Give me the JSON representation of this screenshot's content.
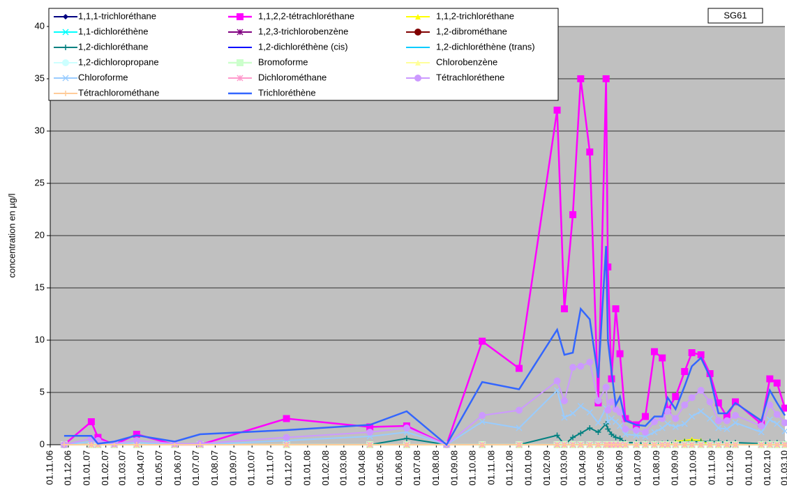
{
  "chart_data": {
    "type": "line",
    "annotation": "SG61",
    "y_label": "concentration en µg/l",
    "background": "#c0c0c0",
    "grid": true,
    "ylim": [
      0,
      40
    ],
    "yticks": [
      0,
      5,
      10,
      15,
      20,
      25,
      30,
      35,
      40
    ],
    "xlim": [
      "01.11.06",
      "01.03.10"
    ],
    "xticks": [
      "01.11.06",
      "01.12.06",
      "01.01.07",
      "01.02.07",
      "01.03.07",
      "01.04.07",
      "01.05.07",
      "01.06.07",
      "01.07.07",
      "01.08.07",
      "01.09.07",
      "01.10.07",
      "01.11.07",
      "01.12.07",
      "01.01.08",
      "01.02.08",
      "01.03.08",
      "01.04.08",
      "01.05.08",
      "01.06.08",
      "01.07.08",
      "01.08.08",
      "01.09.08",
      "01.10.08",
      "01.11.08",
      "01.12.08",
      "01.01.09",
      "01.02.09",
      "01.03.09",
      "01.04.09",
      "01.05.09",
      "01.06.09",
      "01.07.09",
      "01.08.09",
      "01.09.09",
      "01.10.09",
      "01.11.09",
      "01.12.09",
      "01.01.10",
      "01.02.10",
      "01.03.10"
    ],
    "x": [
      "24.11.06",
      "08.01.07",
      "19.01.07",
      "15.02.07",
      "24.03.07",
      "26.05.07",
      "07.07.07",
      "27.11.07",
      "13.04.08",
      "13.06.08",
      "18.08.08",
      "16.10.08",
      "16.12.08",
      "17.02.09",
      "01.03.09",
      "15.03.09",
      "28.03.09",
      "12.04.09",
      "26.04.09",
      "09.05.09",
      "12.05.09",
      "18.05.09",
      "25.05.09",
      "01.06.09",
      "10.06.09",
      "28.06.09",
      "13.07.09",
      "28.07.09",
      "10.08.09",
      "19.08.09",
      "01.09.09",
      "16.09.09",
      "28.09.09",
      "13.10.09",
      "28.10.09",
      "11.11.09",
      "25.11.09",
      "09.12.09",
      "21.01.10",
      "04.02.10",
      "16.02.10",
      "01.03.10"
    ],
    "series": [
      {
        "name": "1,1,1-trichloréthane",
        "color": "#000080",
        "marker": "diamond",
        "values": [
          0,
          0,
          0,
          0,
          0,
          0,
          0,
          0,
          0,
          0,
          0,
          0,
          0,
          0,
          0,
          0,
          0,
          0,
          0,
          0,
          0,
          0,
          0,
          0,
          0,
          0,
          0,
          0,
          0,
          0,
          0,
          0,
          0,
          0,
          0,
          0,
          0,
          0,
          0,
          0,
          0,
          0
        ]
      },
      {
        "name": "1,1,2,2-tétrachloréthane",
        "color": "#ff00ff",
        "marker": "square",
        "values": [
          0,
          2.2,
          0.7,
          0,
          1.0,
          0,
          0,
          2.5,
          1.7,
          1.8,
          0,
          9.9,
          7.3,
          32,
          13,
          22,
          35,
          28,
          4,
          35,
          17,
          6.3,
          13,
          8.7,
          2.5,
          1.9,
          2.7,
          8.9,
          8.3,
          3.3,
          4.6,
          7,
          8.8,
          8.6,
          6.8,
          4,
          2.7,
          4.1,
          2,
          6.3,
          5.9,
          3.5
        ]
      },
      {
        "name": "1,1,2-trichloréthane",
        "color": "#ffff00",
        "marker": "triangle",
        "values": [
          0,
          0,
          0,
          0,
          0,
          0,
          0,
          0,
          0,
          0,
          0,
          0,
          0,
          0,
          0,
          0,
          0,
          0,
          0,
          0,
          0,
          0,
          0,
          0,
          0,
          0,
          0,
          0,
          0,
          0,
          0.3,
          0.4,
          0.5,
          0.4,
          0,
          0,
          0,
          0,
          0,
          0,
          0,
          0
        ]
      },
      {
        "name": "1,1-dichloréthène",
        "color": "#00ffff",
        "marker": "x",
        "values": [
          0,
          0,
          0,
          0,
          0,
          0,
          0,
          0,
          0,
          0,
          0,
          0,
          0,
          0,
          0,
          0,
          0,
          0,
          0,
          0,
          0,
          0,
          0,
          0,
          0,
          0,
          0,
          0,
          0,
          0,
          0,
          0,
          0,
          0,
          0,
          0,
          0,
          0,
          0,
          0,
          0,
          0
        ]
      },
      {
        "name": "1,2,3-trichlorobenzène",
        "color": "#800080",
        "marker": "star",
        "values": [
          0,
          0,
          0,
          0,
          0,
          0,
          0,
          0,
          0,
          0,
          0,
          0,
          0,
          0,
          0,
          0,
          0,
          0,
          0,
          0,
          0,
          0,
          0,
          0,
          0,
          0,
          0,
          0,
          0,
          0,
          0,
          0,
          0,
          0,
          0,
          0,
          0,
          0,
          0,
          0,
          0,
          0
        ]
      },
      {
        "name": "1,2-dibrométhane",
        "color": "#800000",
        "marker": "circle",
        "values": [
          0,
          0,
          0,
          0,
          0,
          0,
          0,
          0,
          0,
          0,
          0,
          0,
          0,
          0,
          0,
          0,
          0,
          0,
          0,
          0,
          0,
          0,
          0,
          0,
          0,
          0,
          0,
          0,
          0,
          0,
          0,
          0,
          0,
          0,
          0,
          0,
          0,
          0,
          0,
          0,
          0,
          0
        ]
      },
      {
        "name": "1,2-dichloréthane",
        "color": "#008080",
        "marker": "plus",
        "values": [
          0,
          0,
          0,
          0,
          0,
          0,
          0,
          0,
          0,
          0.6,
          0,
          0,
          0,
          0.9,
          0,
          0.7,
          1.1,
          1.6,
          1.2,
          2.0,
          1.5,
          1.0,
          0.7,
          0.6,
          0.2,
          0.2,
          0.1,
          0.1,
          0.1,
          0.2,
          0.2,
          0.3,
          0.3,
          0.3,
          0.3,
          0.3,
          0.2,
          0.2,
          0.1,
          0.2,
          0.2,
          0.1
        ]
      },
      {
        "name": "1,2-dichloréthène (cis)",
        "color": "#0000ff",
        "marker": "dash",
        "values": [
          0,
          0,
          0,
          0,
          0,
          0,
          0,
          0,
          0,
          0,
          0,
          0,
          0,
          0,
          0,
          0,
          0,
          0,
          0,
          0,
          0,
          0,
          0,
          0,
          0,
          0,
          0,
          0,
          0,
          0,
          0,
          0,
          0,
          0,
          0,
          0,
          0,
          0,
          0,
          0,
          0,
          0
        ]
      },
      {
        "name": "1,2-dichloréthène (trans)",
        "color": "#00ccff",
        "marker": "dash",
        "values": [
          0,
          0,
          0,
          0,
          0,
          0,
          0,
          0,
          0,
          0,
          0,
          0,
          0,
          0,
          0,
          0,
          0,
          0,
          0,
          0,
          0,
          0,
          0,
          0,
          0,
          0,
          0,
          0,
          0,
          0,
          0,
          0,
          0,
          0,
          0,
          0,
          0,
          0,
          0,
          0,
          0,
          0
        ]
      },
      {
        "name": "1,2-dichloropropane",
        "color": "#ccffff",
        "marker": "circle",
        "values": [
          0,
          0,
          0,
          0,
          0,
          0,
          0,
          0,
          0,
          0,
          0,
          0,
          0,
          0,
          0,
          0,
          0,
          0,
          0,
          0,
          0,
          0,
          0,
          0,
          0,
          0,
          0,
          0,
          0,
          0,
          0,
          0,
          0,
          0,
          0,
          0,
          0,
          0,
          0,
          0,
          0,
          0
        ]
      },
      {
        "name": "Bromoforme",
        "color": "#ccffcc",
        "marker": "square",
        "values": [
          0,
          0,
          0,
          0,
          0,
          0,
          0,
          0,
          0,
          0,
          0,
          0,
          0,
          0,
          0,
          0,
          0,
          0,
          0,
          0,
          0,
          0,
          0,
          0,
          0,
          0,
          0,
          0,
          0,
          0,
          0,
          0,
          0,
          0,
          0,
          0,
          0,
          0,
          0,
          0,
          0,
          0
        ]
      },
      {
        "name": "Chlorobenzène",
        "color": "#ffff99",
        "marker": "triangle",
        "values": [
          0,
          0,
          0,
          0,
          0,
          0,
          0,
          0,
          0,
          0,
          0,
          0,
          0,
          0,
          0,
          0,
          0,
          0,
          0,
          0,
          0,
          0,
          0,
          0,
          0,
          0,
          0,
          0,
          0,
          0,
          0,
          0,
          0,
          0,
          0,
          0,
          0,
          0,
          0,
          0,
          0,
          0
        ]
      },
      {
        "name": "Chloroforme",
        "color": "#99ccff",
        "marker": "x",
        "values": [
          0,
          0.3,
          0.2,
          0,
          0.2,
          0,
          0,
          0.4,
          0.8,
          1.2,
          0,
          2.2,
          1.6,
          5.2,
          2.6,
          3,
          3.7,
          3.1,
          2.1,
          3.5,
          2.2,
          2.5,
          2.2,
          1.8,
          1,
          0.9,
          0.8,
          1.2,
          1.6,
          2,
          1.7,
          2,
          2.7,
          3.2,
          2.5,
          1.6,
          1.5,
          2.1,
          1.2,
          2.4,
          2,
          1.3
        ]
      },
      {
        "name": "Dichlorométhane",
        "color": "#ff99cc",
        "marker": "star",
        "values": [
          0,
          0,
          0,
          0,
          0,
          0,
          0,
          0,
          0,
          0,
          0,
          0,
          0,
          0,
          0,
          0,
          0,
          0,
          0,
          0,
          0,
          0,
          0,
          0,
          0,
          0,
          0,
          0,
          0,
          0,
          0,
          0,
          0,
          0,
          0,
          0,
          0,
          0,
          0,
          0,
          0,
          0
        ]
      },
      {
        "name": "Tétrachloréthene",
        "color": "#cc99ff",
        "marker": "circle",
        "values": [
          0,
          0.6,
          0.4,
          0.1,
          0.4,
          0.1,
          0.1,
          0.7,
          1.2,
          1.6,
          0,
          2.8,
          3.3,
          6.1,
          4.2,
          7.4,
          7.5,
          7.9,
          4.2,
          5.5,
          3.3,
          4.1,
          3.4,
          3.1,
          1.5,
          1.4,
          1.2,
          2.2,
          2.5,
          3.2,
          2.5,
          3.8,
          4.5,
          5.2,
          4.1,
          2.3,
          2.3,
          2.8,
          1.8,
          3.8,
          2.9,
          2.1
        ]
      },
      {
        "name": "Tétrachlorométhane",
        "color": "#ffcc99",
        "marker": "plus",
        "values": [
          0,
          0,
          0,
          0,
          0,
          0,
          0,
          0,
          0,
          0,
          0,
          0,
          0,
          0,
          0,
          0,
          0,
          0,
          0,
          0,
          0,
          0,
          0,
          0,
          0,
          0,
          0,
          0,
          0,
          0,
          0,
          0,
          0,
          0,
          0,
          0,
          0,
          0,
          0,
          0,
          0,
          0
        ]
      },
      {
        "name": "Trichloréthène",
        "color": "#3366ff",
        "marker": "none",
        "values": [
          0.85,
          0.85,
          0.1,
          0.3,
          0.9,
          0.3,
          1.0,
          1.4,
          1.9,
          3.2,
          0,
          6,
          5.3,
          11,
          8.6,
          8.8,
          13,
          12,
          6.4,
          19,
          10,
          7,
          3.8,
          4.6,
          2.3,
          1.9,
          1.8,
          2.7,
          2.7,
          4.5,
          3.4,
          5.6,
          7.5,
          8.3,
          6.5,
          3,
          3,
          4,
          2.3,
          5.2,
          4,
          2.8
        ]
      }
    ]
  }
}
